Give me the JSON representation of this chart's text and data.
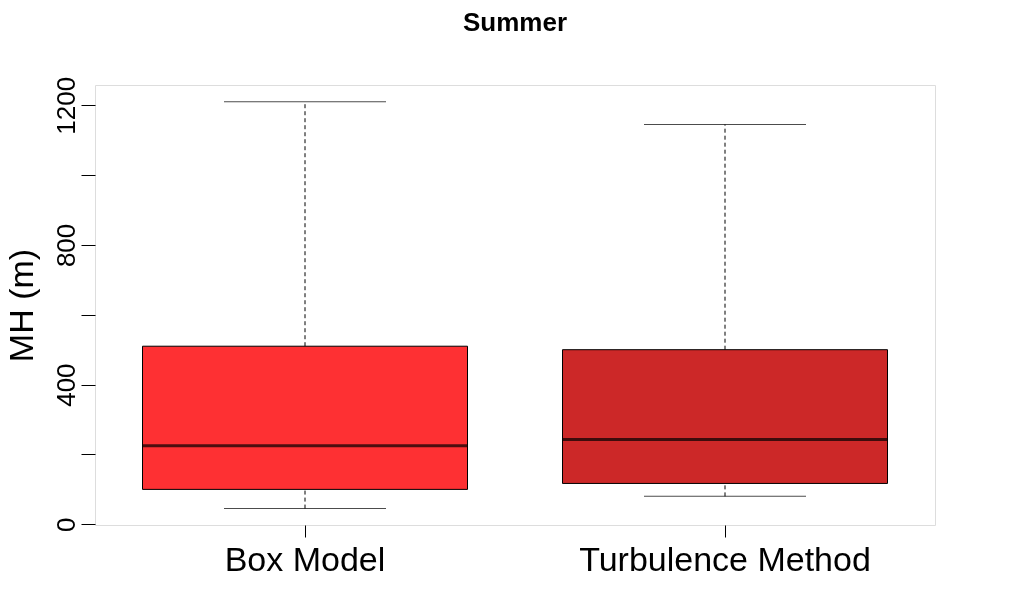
{
  "chart_data": {
    "type": "box",
    "title": "Summer",
    "ylabel": "MH (m)",
    "categories": [
      "Box Model",
      "Turbulence Method"
    ],
    "boxes": [
      {
        "low": 45,
        "q1": 100,
        "median": 225,
        "q3": 510,
        "high": 1210
      },
      {
        "low": 80,
        "q1": 117,
        "median": 243,
        "q3": 500,
        "high": 1145
      }
    ],
    "colors": [
      "#fe3033",
      "#cc2828"
    ],
    "ylim": [
      -2,
      1258
    ],
    "yticks": [
      0,
      {
        "value": 200,
        "label": null
      },
      400,
      {
        "value": 600,
        "label": null
      },
      800,
      {
        "value": 1000,
        "label": null
      },
      1200
    ],
    "line_style": "dashed",
    "grid": false
  }
}
